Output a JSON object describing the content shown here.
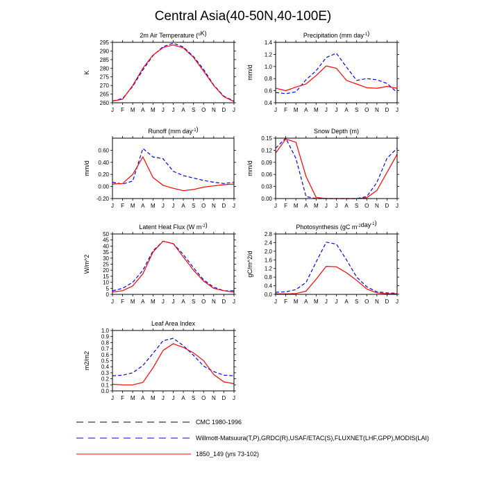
{
  "title": "Central Asia(40-50N,40-100E)",
  "months": [
    "J",
    "F",
    "M",
    "A",
    "M",
    "J",
    "J",
    "A",
    "S",
    "O",
    "N",
    "D",
    "J"
  ],
  "colors": {
    "obs": "#0000ff",
    "cmc": "#000000",
    "model": "#ff0000"
  },
  "legend": [
    {
      "key": "cmc",
      "label": "CMC 1980-1996",
      "color": "#000000",
      "dash": true
    },
    {
      "key": "obs",
      "label": "Willmott-Matsuura(T,P),GRDC(R),USAF/ETAC(S),FLUXNET(LHF,GPP),MODIS(LAI)",
      "color": "#0000ff",
      "dash": true
    },
    {
      "key": "model",
      "label": "1850_149 (yrs 73-102)",
      "color": "#ff0000",
      "dash": false
    }
  ],
  "chart_data": [
    {
      "id": "temp",
      "type": "line",
      "title": "2m Air Temperature (",
      "title_sup": "o",
      "title_tail": "K)",
      "ylabel": "K",
      "ylim": [
        260,
        295
      ],
      "yticks": [
        "260",
        "265",
        "270",
        "275",
        "280",
        "285",
        "290",
        "295"
      ],
      "series": [
        {
          "name": "Willmott-Matsuura",
          "style": "obs",
          "values": [
            261,
            262.5,
            269.5,
            279,
            287.3,
            292.5,
            294.5,
            292.3,
            286.8,
            279.3,
            270.3,
            263.8,
            261
          ]
        },
        {
          "name": "1850_149 (yrs 73-102)",
          "style": "model",
          "values": [
            261,
            262,
            270,
            280,
            287.6,
            292,
            293.5,
            291.8,
            286.3,
            278.3,
            270,
            263.5,
            260.7
          ]
        }
      ]
    },
    {
      "id": "precip",
      "type": "line",
      "title": "Precipitation (mm day",
      "title_sup": "-1",
      "title_tail": ")",
      "ylabel": "mm/d",
      "ylim": [
        0.4,
        1.4
      ],
      "yticks": [
        "0.4",
        "0.6",
        "0.8",
        "1.0",
        "1.2",
        "1.4"
      ],
      "series": [
        {
          "name": "Willmott-Matsuura",
          "style": "obs",
          "values": [
            0.57,
            0.55,
            0.58,
            0.78,
            0.93,
            1.15,
            1.22,
            0.99,
            0.77,
            0.8,
            0.78,
            0.72,
            0.57
          ]
        },
        {
          "name": "1850_149 (yrs 73-102)",
          "style": "model",
          "values": [
            0.64,
            0.6,
            0.66,
            0.71,
            0.85,
            1.01,
            0.97,
            0.77,
            0.71,
            0.65,
            0.64,
            0.67,
            0.64
          ]
        }
      ]
    },
    {
      "id": "runoff",
      "type": "line",
      "title": "Runoff (mm day",
      "title_sup": "-1",
      "title_tail": ")",
      "ylabel": "mm/d",
      "ylim": [
        -0.2,
        0.8
      ],
      "yticks": [
        "-0.20",
        "0.00",
        "0.20",
        "0.40",
        "0.60"
      ],
      "series": [
        {
          "name": "GRDC",
          "style": "obs",
          "values": [
            0.07,
            0.04,
            0.09,
            0.63,
            0.49,
            0.46,
            0.25,
            0.18,
            0.14,
            0.1,
            0.07,
            0.05,
            0.07
          ]
        },
        {
          "name": "1850_149 (yrs 73-102)",
          "style": "model",
          "values": [
            0.04,
            0.05,
            0.2,
            0.49,
            0.15,
            0.02,
            -0.03,
            -0.07,
            -0.05,
            -0.01,
            0.01,
            0.03,
            0.04
          ]
        }
      ]
    },
    {
      "id": "snow",
      "type": "line",
      "title": "Snow Depth (m)",
      "title_sup": "",
      "title_tail": "",
      "ylabel": "mm/d",
      "ylim": [
        0,
        0.15
      ],
      "yticks": [
        "0.00",
        "0.03",
        "0.06",
        "0.09",
        "0.12",
        "0.15"
      ],
      "series": [
        {
          "name": "USAF/ETAC",
          "style": "obs",
          "values": [
            0.125,
            0.15,
            0.1,
            0.005,
            0,
            0,
            0,
            0,
            0,
            0.005,
            0.04,
            0.1,
            0.125
          ]
        },
        {
          "name": "1850_149 (yrs 73-102)",
          "style": "model",
          "values": [
            0.113,
            0.148,
            0.14,
            0.055,
            0.003,
            0,
            0,
            0,
            0,
            0.002,
            0.02,
            0.065,
            0.11
          ]
        }
      ]
    },
    {
      "id": "lhf",
      "type": "line",
      "title": "Latent Heat Flux (W m",
      "title_sup": "-2",
      "title_tail": ")",
      "ylabel": "W/m^2",
      "ylim": [
        0,
        50
      ],
      "yticks": [
        "0",
        "5",
        "10",
        "15",
        "20",
        "25",
        "30",
        "35",
        "40",
        "45",
        "50"
      ],
      "series": [
        {
          "name": "FLUXNET",
          "style": "obs",
          "values": [
            3,
            5,
            10,
            20,
            36,
            44,
            42,
            33,
            22,
            12,
            6,
            3,
            3
          ]
        },
        {
          "name": "1850_149 (yrs 73-102)",
          "style": "model",
          "values": [
            2,
            3,
            7,
            17,
            35,
            44,
            42,
            31,
            20,
            11,
            5,
            3,
            2
          ]
        }
      ]
    },
    {
      "id": "gpp",
      "type": "line",
      "title": "Photosynthesis (gC m",
      "title_sup": "-2",
      "title_tail": "day",
      "title_sup2": "-1",
      "title_tail2": ")",
      "ylabel": "gC/m^2/d",
      "ylim": [
        0,
        2.8
      ],
      "yticks": [
        "0.0",
        "0.4",
        "0.8",
        "1.2",
        "1.6",
        "2.0",
        "2.4",
        "2.8"
      ],
      "series": [
        {
          "name": "FLUXNET",
          "style": "obs",
          "values": [
            0.1,
            0.12,
            0.22,
            0.55,
            1.5,
            2.42,
            2.33,
            1.6,
            0.8,
            0.35,
            0.12,
            0.07,
            0.05
          ]
        },
        {
          "name": "1850_149 (yrs 73-102)",
          "style": "model",
          "values": [
            0.03,
            0.02,
            0.04,
            0.15,
            0.7,
            1.3,
            1.28,
            1.0,
            0.65,
            0.25,
            0.07,
            0.03,
            0.03
          ]
        }
      ]
    },
    {
      "id": "lai",
      "type": "line",
      "title": "Leaf Area Index",
      "title_sup": "",
      "title_tail": "",
      "ylabel": "m2/m2",
      "ylim": [
        0,
        1.0
      ],
      "yticks": [
        "0.0",
        "0.1",
        "0.2",
        "0.3",
        "0.4",
        "0.5",
        "0.6",
        "0.7",
        "0.8",
        "0.9",
        "1.0"
      ],
      "series": [
        {
          "name": "MODIS",
          "style": "obs",
          "values": [
            0.25,
            0.26,
            0.3,
            0.42,
            0.62,
            0.83,
            0.87,
            0.75,
            0.59,
            0.41,
            0.32,
            0.26,
            0.25
          ]
        },
        {
          "name": "1850_149 (yrs 73-102)",
          "style": "model",
          "values": [
            0.11,
            0.1,
            0.1,
            0.14,
            0.38,
            0.67,
            0.78,
            0.72,
            0.63,
            0.5,
            0.27,
            0.15,
            0.12
          ]
        }
      ]
    }
  ]
}
